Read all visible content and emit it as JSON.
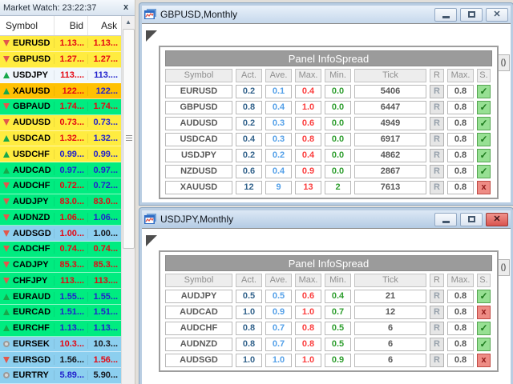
{
  "market_watch": {
    "title": "Market Watch: 23:22:37",
    "close_glyph": "x",
    "columns": {
      "symbol": "Symbol",
      "bid": "Bid",
      "ask": "Ask"
    },
    "scroll_up_glyph": "▲",
    "rows": [
      {
        "symbol": "EURUSD",
        "dir": "down",
        "bg": "yellow",
        "bid": "1.13...",
        "bid_color": "red",
        "ask": "1.13...",
        "ask_color": "red"
      },
      {
        "symbol": "GBPUSD",
        "dir": "down",
        "bg": "yellow",
        "bid": "1.27...",
        "bid_color": "red",
        "ask": "1.27...",
        "ask_color": "red"
      },
      {
        "symbol": "USDJPY",
        "dir": "up",
        "bg": "white",
        "bid": "113....",
        "bid_color": "red",
        "ask": "113....",
        "ask_color": "blue"
      },
      {
        "symbol": "XAUUSD",
        "dir": "up",
        "bg": "orange",
        "bid": "122...",
        "bid_color": "red",
        "ask": "122...",
        "ask_color": "blue"
      },
      {
        "symbol": "GBPAUD",
        "dir": "down",
        "bg": "green",
        "bid": "1.74...",
        "bid_color": "red",
        "ask": "1.74...",
        "ask_color": "red"
      },
      {
        "symbol": "AUDUSD",
        "dir": "down",
        "bg": "yellow",
        "bid": "0.73...",
        "bid_color": "red",
        "ask": "0.73...",
        "ask_color": "blue"
      },
      {
        "symbol": "USDCAD",
        "dir": "up",
        "bg": "yellow",
        "bid": "1.32...",
        "bid_color": "red",
        "ask": "1.32...",
        "ask_color": "blue"
      },
      {
        "symbol": "USDCHF",
        "dir": "up",
        "bg": "yellow",
        "bid": "0.99...",
        "bid_color": "blue",
        "ask": "0.99...",
        "ask_color": "blue"
      },
      {
        "symbol": "AUDCAD",
        "dir": "up",
        "bg": "green",
        "bid": "0.97...",
        "bid_color": "blue",
        "ask": "0.97...",
        "ask_color": "blue"
      },
      {
        "symbol": "AUDCHF",
        "dir": "down",
        "bg": "green",
        "bid": "0.72...",
        "bid_color": "red",
        "ask": "0.72...",
        "ask_color": "blue"
      },
      {
        "symbol": "AUDJPY",
        "dir": "down",
        "bg": "green",
        "bid": "83.0...",
        "bid_color": "red",
        "ask": "83.0...",
        "ask_color": "red"
      },
      {
        "symbol": "AUDNZD",
        "dir": "down",
        "bg": "green",
        "bid": "1.06...",
        "bid_color": "red",
        "ask": "1.06...",
        "ask_color": "blue"
      },
      {
        "symbol": "AUDSGD",
        "dir": "down",
        "bg": "lblue",
        "bid": "1.00...",
        "bid_color": "red",
        "ask": "1.00...",
        "ask_color": "black"
      },
      {
        "symbol": "CADCHF",
        "dir": "down",
        "bg": "green",
        "bid": "0.74...",
        "bid_color": "red",
        "ask": "0.74...",
        "ask_color": "red"
      },
      {
        "symbol": "CADJPY",
        "dir": "down",
        "bg": "green",
        "bid": "85.3...",
        "bid_color": "red",
        "ask": "85.3...",
        "ask_color": "red"
      },
      {
        "symbol": "CHFJPY",
        "dir": "down",
        "bg": "green",
        "bid": "113....",
        "bid_color": "red",
        "ask": "113....",
        "ask_color": "red"
      },
      {
        "symbol": "EURAUD",
        "dir": "up",
        "bg": "green",
        "bid": "1.55...",
        "bid_color": "blue",
        "ask": "1.55...",
        "ask_color": "blue"
      },
      {
        "symbol": "EURCAD",
        "dir": "up",
        "bg": "green",
        "bid": "1.51...",
        "bid_color": "blue",
        "ask": "1.51...",
        "ask_color": "blue"
      },
      {
        "symbol": "EURCHF",
        "dir": "up",
        "bg": "green",
        "bid": "1.13...",
        "bid_color": "blue",
        "ask": "1.13...",
        "ask_color": "blue"
      },
      {
        "symbol": "EURSEK",
        "dir": "flat",
        "bg": "lblue",
        "bid": "10.3...",
        "bid_color": "red",
        "ask": "10.3...",
        "ask_color": "black"
      },
      {
        "symbol": "EURSGD",
        "dir": "down",
        "bg": "lblue",
        "bid": "1.56...",
        "bid_color": "black",
        "ask": "1.56...",
        "ask_color": "red"
      },
      {
        "symbol": "EURTRY",
        "dir": "flat",
        "bg": "lblue",
        "bid": "5.89...",
        "bid_color": "blue",
        "ask": "5.90...",
        "ask_color": "black"
      }
    ]
  },
  "windows": [
    {
      "title": "GBPUSD,Monthly",
      "active": false,
      "expander_glyph": "()",
      "panel": {
        "title": "Panel InfoSpread",
        "columns": [
          "Symbol",
          "Act.",
          "Ave.",
          "Max.",
          "Min.",
          "Tick",
          "R",
          "Max.",
          "S."
        ],
        "r_label": "R",
        "check_glyph": "✓",
        "cross_glyph": "x",
        "rows": [
          {
            "symbol": "EURUSD",
            "act": "0.2",
            "ave": "0.1",
            "max": "0.4",
            "min": "0.0",
            "tick": "5406",
            "max2": "0.8",
            "status": "ok"
          },
          {
            "symbol": "GBPUSD",
            "act": "0.8",
            "ave": "0.4",
            "max": "1.0",
            "min": "0.0",
            "tick": "6447",
            "max2": "0.8",
            "status": "ok"
          },
          {
            "symbol": "AUDUSD",
            "act": "0.2",
            "ave": "0.3",
            "max": "0.6",
            "min": "0.0",
            "tick": "4949",
            "max2": "0.8",
            "status": "ok"
          },
          {
            "symbol": "USDCAD",
            "act": "0.4",
            "ave": "0.3",
            "max": "0.8",
            "min": "0.0",
            "tick": "6917",
            "max2": "0.8",
            "status": "ok"
          },
          {
            "symbol": "USDJPY",
            "act": "0.2",
            "ave": "0.2",
            "max": "0.4",
            "min": "0.0",
            "tick": "4862",
            "max2": "0.8",
            "status": "ok"
          },
          {
            "symbol": "NZDUSD",
            "act": "0.6",
            "ave": "0.4",
            "max": "0.9",
            "min": "0.0",
            "tick": "2867",
            "max2": "0.8",
            "status": "ok"
          },
          {
            "symbol": "XAUUSD",
            "act": "12",
            "ave": "9",
            "max": "13",
            "min": "2",
            "tick": "7613",
            "max2": "0.8",
            "status": "no"
          }
        ]
      }
    },
    {
      "title": "USDJPY,Monthly",
      "active": true,
      "expander_glyph": "()",
      "panel": {
        "title": "Panel InfoSpread",
        "columns": [
          "Symbol",
          "Act.",
          "Ave.",
          "Max.",
          "Min.",
          "Tick",
          "R",
          "Max.",
          "S."
        ],
        "r_label": "R",
        "check_glyph": "✓",
        "cross_glyph": "x",
        "rows": [
          {
            "symbol": "AUDJPY",
            "act": "0.5",
            "ave": "0.5",
            "max": "0.6",
            "min": "0.4",
            "tick": "21",
            "max2": "0.8",
            "status": "ok"
          },
          {
            "symbol": "AUDCAD",
            "act": "1.0",
            "ave": "0.9",
            "max": "1.0",
            "min": "0.7",
            "tick": "12",
            "max2": "0.8",
            "status": "no"
          },
          {
            "symbol": "AUDCHF",
            "act": "0.8",
            "ave": "0.7",
            "max": "0.8",
            "min": "0.5",
            "tick": "6",
            "max2": "0.8",
            "status": "ok"
          },
          {
            "symbol": "AUDNZD",
            "act": "0.8",
            "ave": "0.7",
            "max": "0.8",
            "min": "0.5",
            "tick": "6",
            "max2": "0.8",
            "status": "ok"
          },
          {
            "symbol": "AUDSGD",
            "act": "1.0",
            "ave": "1.0",
            "max": "1.0",
            "min": "0.9",
            "tick": "6",
            "max2": "0.8",
            "status": "no"
          }
        ]
      }
    }
  ],
  "colors": {
    "row_yellow": "#ffec40",
    "row_orange": "#ffc103",
    "row_green": "#00ec80",
    "row_lightblue": "#8ccfef",
    "row_white": "#f0f6fc",
    "bid_red": "#e40813",
    "bid_blue": "#2222cc",
    "bid_black": "#15151a",
    "panel_header_bg": "#9b9b9b",
    "val_act": "#33638c",
    "val_ave": "#54a0e8",
    "val_max": "#fb3d3d",
    "val_min": "#2f9e2f",
    "status_ok_bg": "#97e093",
    "status_no_bg": "#ee8c85",
    "titlebar_active_close": "#d9544f"
  }
}
